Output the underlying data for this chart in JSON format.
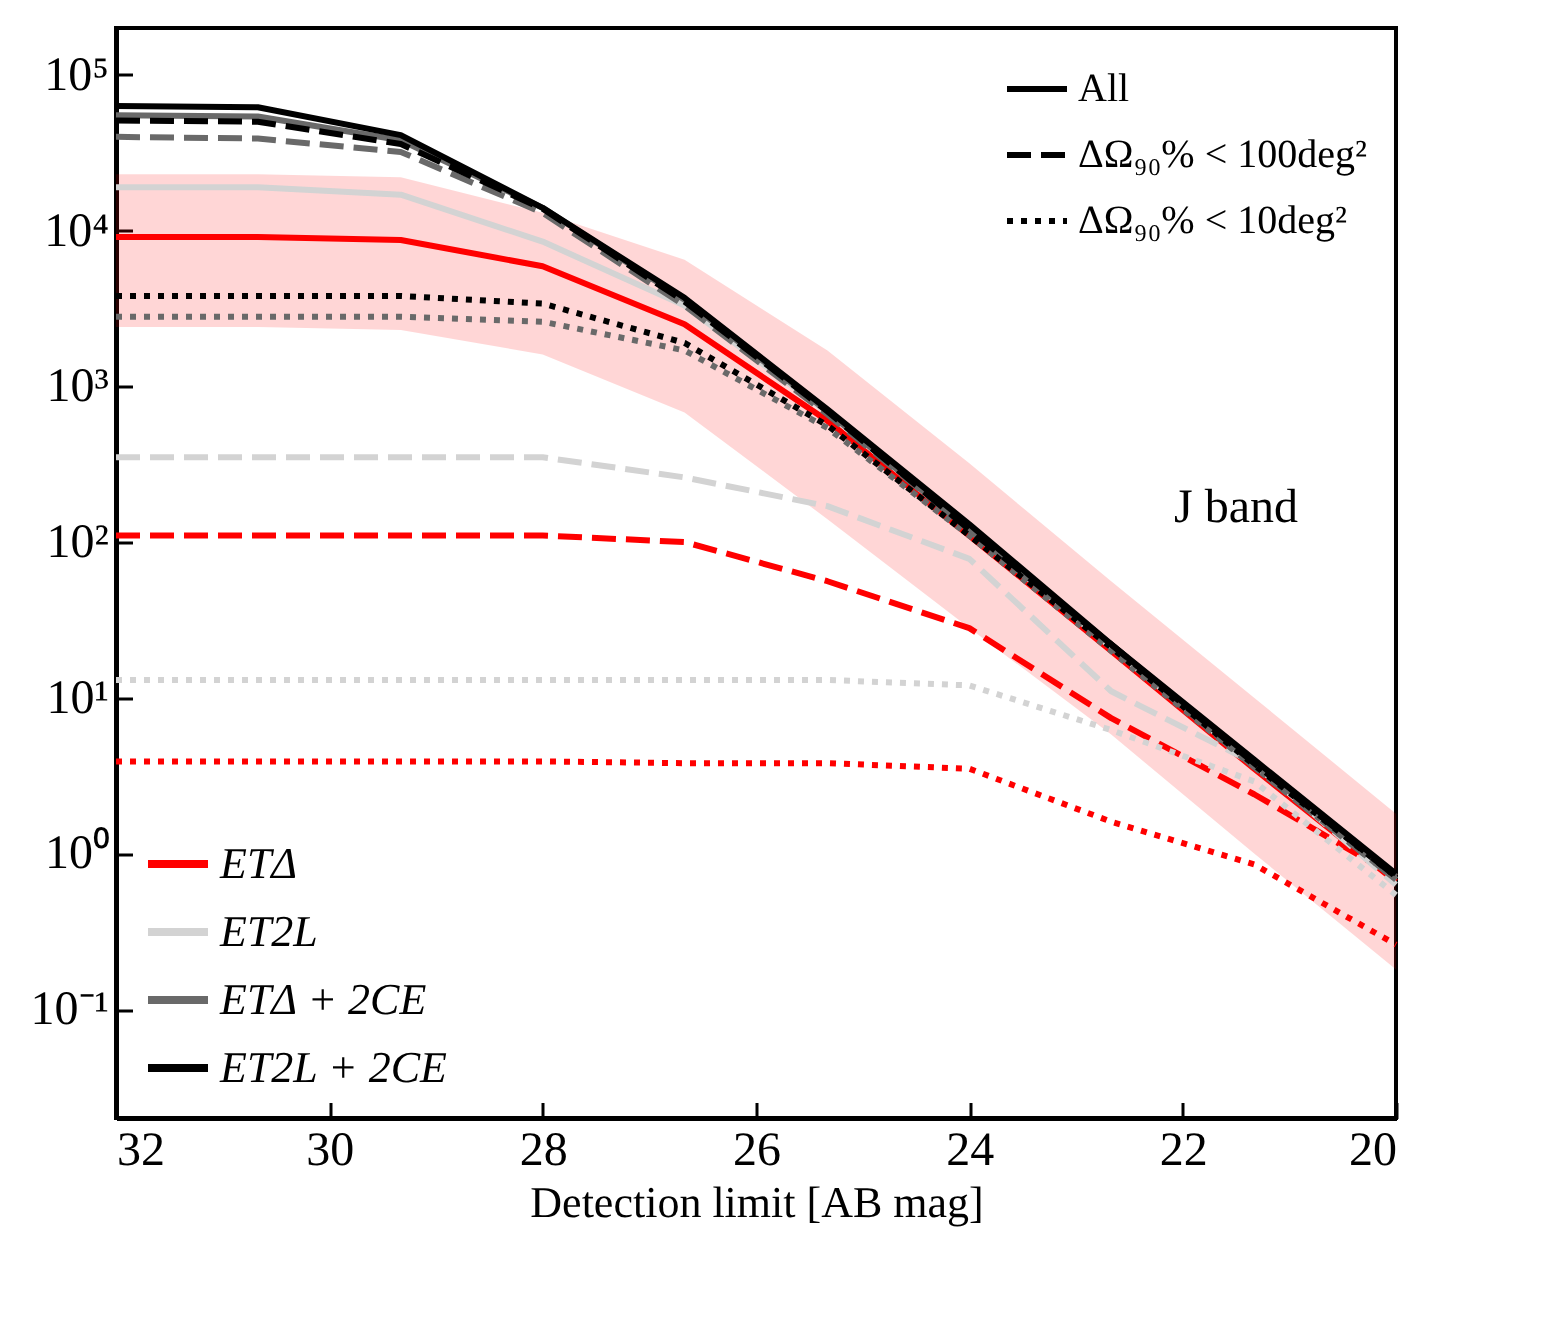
{
  "chart_data": {
    "type": "line",
    "xlabel": "Detection limit  [AB mag]",
    "x": [
      32,
      30.67,
      29.33,
      28,
      26.67,
      25.33,
      24,
      22.67,
      21.33,
      20
    ],
    "xlim": [
      32,
      20
    ],
    "xticks": [
      32,
      30,
      28,
      26,
      24,
      22,
      20
    ],
    "ylim": [
      0.02,
      200000
    ],
    "log": true,
    "yticks": [
      {
        "value": 0.1,
        "label": "10⁻¹"
      },
      {
        "value": 1,
        "label": "10⁰"
      },
      {
        "value": 10,
        "label": "10¹"
      },
      {
        "value": 100,
        "label": "10²"
      },
      {
        "value": 1000,
        "label": "10³"
      },
      {
        "value": 10000,
        "label": "10⁴"
      },
      {
        "value": 100000,
        "label": "10⁵"
      }
    ],
    "legend": "bottom left",
    "annotations": [
      "All",
      "ΔΩ₉₀% < 100deg²",
      "ΔΩ₉₀% < 10deg²",
      "J band"
    ],
    "series": [
      {
        "name": "ETΔ",
        "color": "#ff0000",
        "line_style": "solid",
        "values": [
          9100,
          9100,
          8700,
          5900,
          2500,
          600,
          110,
          20,
          3.5,
          0.66
        ],
        "lower": [
          2400,
          2400,
          2300,
          1600,
          680,
          140,
          28,
          5.8,
          1.0,
          0.18
        ],
        "upper": [
          23000,
          23000,
          22000,
          13000,
          6500,
          1700,
          320,
          56,
          10,
          1.8
        ]
      },
      {
        "color": "#ff0000",
        "line_style": "dashed",
        "values": [
          110,
          110,
          110,
          110,
          100,
          56,
          28,
          7.4,
          2.4,
          0.71
        ]
      },
      {
        "color": "#ff0000",
        "line_style": "dotted",
        "values": [
          3.9,
          3.9,
          3.9,
          3.9,
          3.8,
          3.8,
          3.5,
          1.6,
          0.85,
          0.26
        ]
      },
      {
        "name": "ET2L",
        "color": "#d3d3d3",
        "line_style": "solid",
        "values": [
          19000,
          19000,
          17000,
          8500,
          3300,
          680,
          120,
          21,
          3.7,
          0.68
        ]
      },
      {
        "color": "#d3d3d3",
        "line_style": "dashed",
        "values": [
          350,
          350,
          350,
          350,
          260,
          170,
          78,
          11,
          3.8,
          0.63
        ]
      },
      {
        "color": "#d3d3d3",
        "line_style": "dotted",
        "values": [
          13,
          13,
          13,
          13,
          13,
          13,
          12,
          6.2,
          2.9,
          0.54
        ]
      },
      {
        "name": "ETΔ + 2CE",
        "color": "#696969",
        "line_style": "solid",
        "values": [
          55000,
          54000,
          38000,
          14000,
          3600,
          690,
          120,
          22,
          3.8,
          0.71
        ]
      },
      {
        "color": "#696969",
        "line_style": "dashed",
        "values": [
          40000,
          39000,
          32000,
          13000,
          3300,
          660,
          120,
          21,
          3.6,
          0.68
        ]
      },
      {
        "color": "#696969",
        "line_style": "dotted",
        "values": [
          2800,
          2800,
          2800,
          2600,
          1700,
          540,
          110,
          20,
          3.6,
          0.68
        ]
      },
      {
        "name": "ET2L + 2CE",
        "color": "#000000",
        "line_style": "solid",
        "values": [
          63000,
          62000,
          41000,
          14000,
          3700,
          710,
          130,
          22,
          4.0,
          0.74
        ]
      },
      {
        "color": "#000000",
        "line_style": "dashed",
        "values": [
          51000,
          50000,
          36000,
          13800,
          3500,
          690,
          120,
          22,
          3.8,
          0.71
        ]
      },
      {
        "color": "#000000",
        "line_style": "dotted",
        "values": [
          3800,
          3800,
          3800,
          3400,
          1900,
          560,
          110,
          21,
          3.7,
          0.71
        ]
      }
    ]
  }
}
